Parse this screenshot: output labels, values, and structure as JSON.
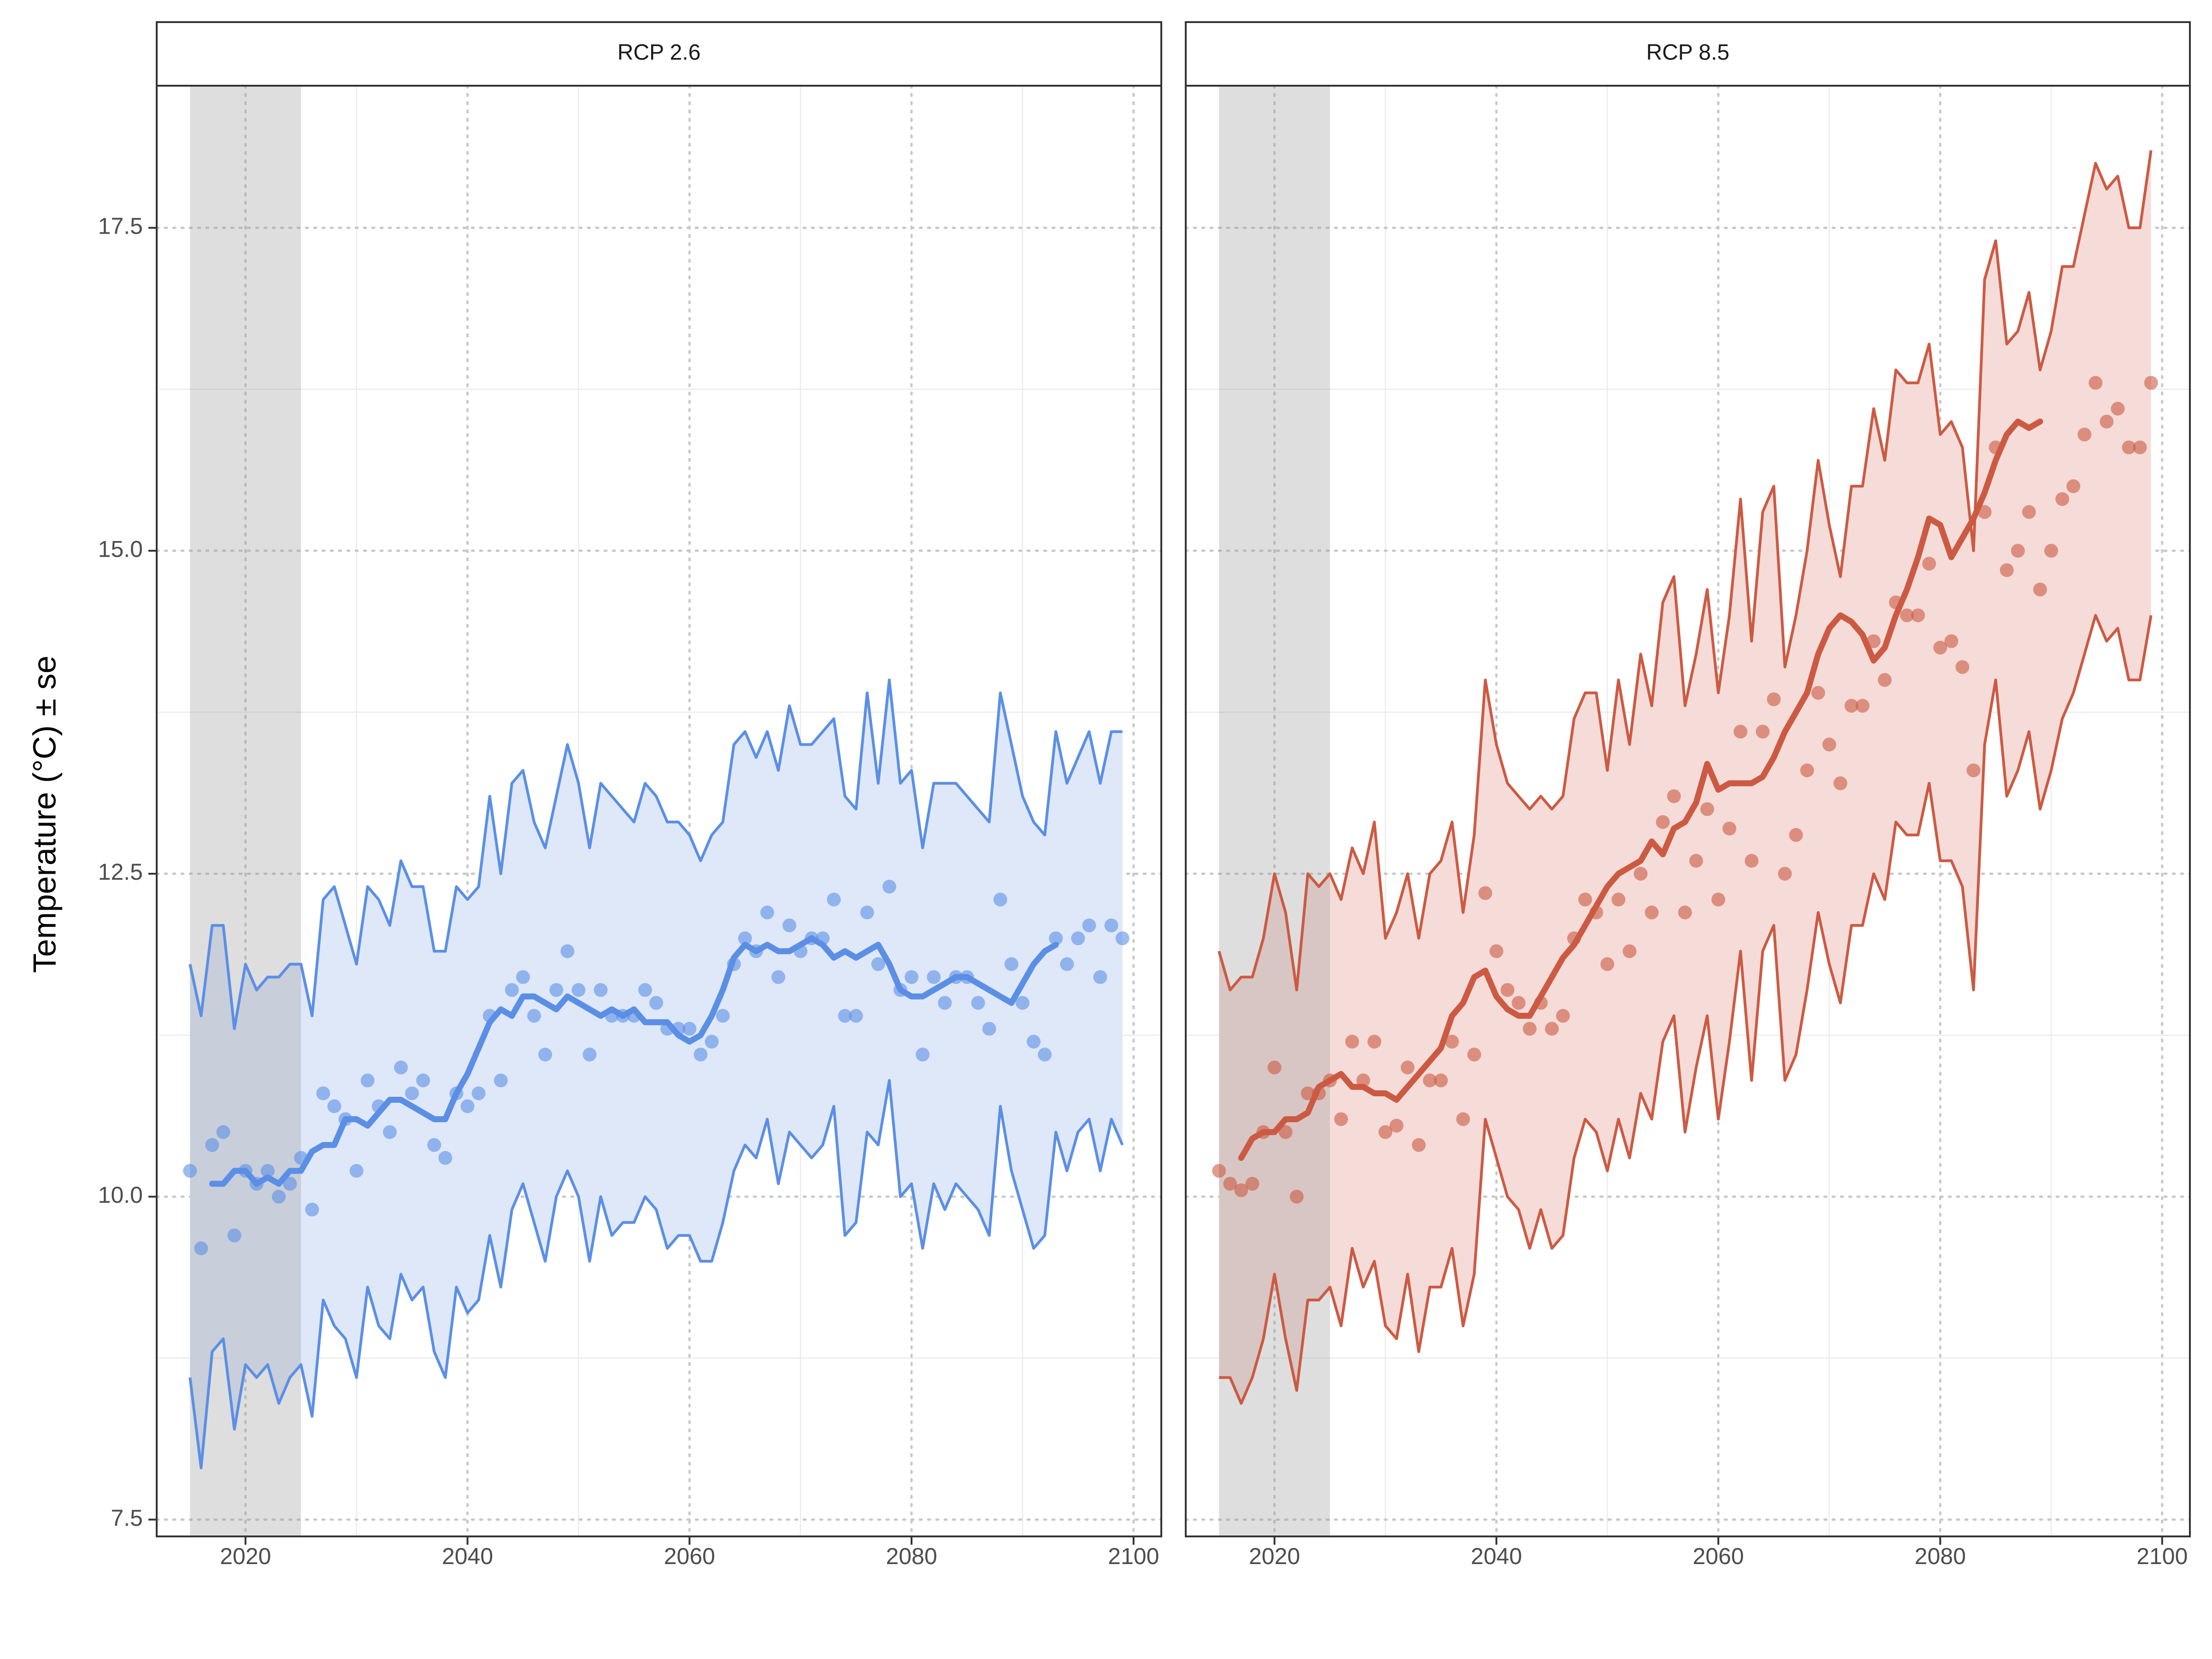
{
  "chart_data": {
    "type": "line",
    "ylabel": "Temperature (°C) ± se",
    "xlabel": "",
    "xlim": [
      2012,
      2102.5
    ],
    "ylim": [
      7.37,
      18.6
    ],
    "x_ticks": [
      2020,
      2040,
      2060,
      2080,
      2100
    ],
    "y_ticks": [
      7.5,
      10.0,
      12.5,
      15.0,
      17.5
    ],
    "y_tick_labels": [
      "7.5",
      "10.0",
      "12.5",
      "15.0",
      "17.5"
    ],
    "baseline_band": [
      2015,
      2025
    ],
    "grid": true,
    "panels": [
      {
        "title": "RCP 2.6",
        "color": "#5b8fe6",
        "fill": "#dfe8f9",
        "years_start": 2015,
        "mean": [
          10.2,
          9.6,
          10.4,
          10.5,
          9.7,
          10.2,
          10.1,
          10.2,
          10.0,
          10.1,
          10.3,
          9.9,
          10.8,
          10.7,
          10.6,
          10.2,
          10.9,
          10.7,
          10.5,
          11.0,
          10.8,
          10.9,
          10.4,
          10.3,
          10.8,
          10.7,
          10.8,
          11.4,
          10.9,
          11.6,
          11.7,
          11.4,
          11.1,
          11.6,
          11.9,
          11.6,
          11.1,
          11.6,
          11.4,
          11.4,
          11.4,
          11.6,
          11.5,
          11.3,
          11.3,
          11.3,
          11.1,
          11.2,
          11.4,
          11.8,
          12.0,
          11.9,
          12.2,
          11.7,
          12.1,
          11.9,
          12.0,
          12.0,
          12.3,
          11.4,
          11.4,
          12.2,
          11.8,
          12.4,
          11.6,
          11.7,
          11.1,
          11.7,
          11.5,
          11.7,
          11.7,
          11.5,
          11.3,
          12.3,
          11.8,
          11.5,
          11.2,
          11.1,
          12.0,
          11.8,
          12.0,
          12.1,
          11.7,
          12.1,
          12.0
        ],
        "upper": [
          11.8,
          11.4,
          12.1,
          12.1,
          11.3,
          11.8,
          11.6,
          11.7,
          11.7,
          11.8,
          11.8,
          11.4,
          12.3,
          12.4,
          12.1,
          11.8,
          12.4,
          12.3,
          12.1,
          12.6,
          12.4,
          12.4,
          11.9,
          11.9,
          12.4,
          12.3,
          12.4,
          13.1,
          12.5,
          13.2,
          13.3,
          12.9,
          12.7,
          13.1,
          13.5,
          13.2,
          12.7,
          13.2,
          13.1,
          13.0,
          12.9,
          13.2,
          13.1,
          12.9,
          12.9,
          12.8,
          12.6,
          12.8,
          12.9,
          13.5,
          13.6,
          13.4,
          13.6,
          13.3,
          13.8,
          13.5,
          13.5,
          13.6,
          13.7,
          13.1,
          13.0,
          13.9,
          13.2,
          14.0,
          13.2,
          13.3,
          12.7,
          13.2,
          13.2,
          13.2,
          13.1,
          13.0,
          12.9,
          13.9,
          13.5,
          13.1,
          12.9,
          12.8,
          13.6,
          13.2,
          13.4,
          13.6,
          13.2,
          13.6,
          13.6
        ],
        "lower": [
          8.6,
          7.9,
          8.8,
          8.9,
          8.2,
          8.7,
          8.6,
          8.7,
          8.4,
          8.6,
          8.7,
          8.3,
          9.2,
          9.0,
          8.9,
          8.6,
          9.3,
          9.0,
          8.9,
          9.4,
          9.2,
          9.3,
          8.8,
          8.6,
          9.3,
          9.1,
          9.2,
          9.7,
          9.3,
          9.9,
          10.1,
          9.8,
          9.5,
          10.0,
          10.2,
          10.0,
          9.5,
          10.0,
          9.7,
          9.8,
          9.8,
          10.0,
          9.9,
          9.6,
          9.7,
          9.7,
          9.5,
          9.5,
          9.8,
          10.2,
          10.4,
          10.3,
          10.6,
          10.1,
          10.5,
          10.4,
          10.3,
          10.4,
          10.7,
          9.7,
          9.8,
          10.5,
          10.4,
          10.9,
          10.0,
          10.1,
          9.6,
          10.1,
          9.9,
          10.1,
          10.0,
          9.9,
          9.7,
          10.7,
          10.2,
          9.9,
          9.6,
          9.7,
          10.5,
          10.2,
          10.5,
          10.6,
          10.2,
          10.6,
          10.4
        ],
        "trend": [
          10.1,
          10.1,
          10.2,
          10.2,
          10.1,
          10.15,
          10.1,
          10.2,
          10.2,
          10.35,
          10.4,
          10.4,
          10.6,
          10.6,
          10.55,
          10.65,
          10.75,
          10.75,
          10.7,
          10.65,
          10.6,
          10.6,
          10.8,
          10.95,
          11.15,
          11.35,
          11.45,
          11.4,
          11.55,
          11.55,
          11.5,
          11.45,
          11.55,
          11.5,
          11.45,
          11.4,
          11.45,
          11.4,
          11.45,
          11.35,
          11.35,
          11.35,
          11.25,
          11.2,
          11.25,
          11.4,
          11.6,
          11.85,
          11.95,
          11.9,
          11.95,
          11.9,
          11.9,
          11.95,
          12.0,
          11.95,
          11.85,
          11.9,
          11.85,
          11.9,
          11.95,
          11.8,
          11.6,
          11.55,
          11.55,
          11.6,
          11.65,
          11.7,
          11.7,
          11.65,
          11.6,
          11.55,
          11.5,
          11.65,
          11.8,
          11.9,
          11.95
        ]
      },
      {
        "title": "RCP 8.5",
        "color": "#cc5a43",
        "fill": "#f6dcd8",
        "years_start": 2015,
        "mean": [
          10.2,
          10.1,
          10.05,
          10.1,
          10.5,
          11.0,
          10.5,
          10.0,
          10.8,
          10.8,
          10.9,
          10.6,
          11.2,
          10.9,
          11.2,
          10.5,
          10.55,
          11.0,
          10.4,
          10.9,
          10.9,
          11.2,
          10.6,
          11.1,
          12.35,
          11.9,
          11.6,
          11.5,
          11.3,
          11.5,
          11.3,
          11.4,
          12.0,
          12.3,
          12.2,
          11.8,
          12.3,
          11.9,
          12.5,
          12.2,
          12.9,
          13.1,
          12.2,
          12.6,
          13.0,
          12.3,
          12.85,
          13.6,
          12.6,
          13.6,
          13.85,
          12.5,
          12.8,
          13.3,
          13.9,
          13.5,
          13.2,
          13.8,
          13.8,
          14.3,
          14.0,
          14.6,
          14.5,
          14.5,
          14.9,
          14.25,
          14.3,
          14.1,
          13.3,
          15.3,
          15.8,
          14.85,
          15.0,
          15.3,
          14.7,
          15.0,
          15.4,
          15.5,
          15.9,
          16.3,
          16.0,
          16.1,
          15.8,
          15.8,
          16.3
        ],
        "upper": [
          11.9,
          11.6,
          11.7,
          11.7,
          12.0,
          12.5,
          12.2,
          11.6,
          12.5,
          12.4,
          12.5,
          12.3,
          12.7,
          12.5,
          12.9,
          12.0,
          12.2,
          12.5,
          12.0,
          12.5,
          12.6,
          12.9,
          12.2,
          12.8,
          14.0,
          13.5,
          13.2,
          13.1,
          13.0,
          13.1,
          13.0,
          13.1,
          13.7,
          13.9,
          13.9,
          13.3,
          14.0,
          13.5,
          14.2,
          13.8,
          14.6,
          14.8,
          13.8,
          14.2,
          14.7,
          13.9,
          14.5,
          15.4,
          14.3,
          15.3,
          15.5,
          14.1,
          14.5,
          15.0,
          15.7,
          15.2,
          14.8,
          15.5,
          15.5,
          16.1,
          15.7,
          16.4,
          16.3,
          16.3,
          16.6,
          15.9,
          16.0,
          15.8,
          15.0,
          17.1,
          17.4,
          16.6,
          16.7,
          17.0,
          16.4,
          16.7,
          17.2,
          17.2,
          17.6,
          18.0,
          17.8,
          17.9,
          17.5,
          17.5,
          18.1
        ],
        "lower": [
          8.6,
          8.6,
          8.4,
          8.6,
          8.9,
          9.4,
          8.9,
          8.5,
          9.2,
          9.2,
          9.3,
          9.0,
          9.6,
          9.3,
          9.5,
          9.0,
          8.9,
          9.4,
          8.8,
          9.3,
          9.3,
          9.6,
          9.0,
          9.4,
          10.6,
          10.3,
          10.0,
          9.9,
          9.6,
          9.9,
          9.6,
          9.7,
          10.3,
          10.6,
          10.5,
          10.2,
          10.6,
          10.3,
          10.8,
          10.6,
          11.2,
          11.4,
          10.5,
          11.0,
          11.4,
          10.6,
          11.2,
          11.9,
          10.9,
          11.9,
          12.1,
          10.9,
          11.1,
          11.6,
          12.2,
          11.8,
          11.5,
          12.1,
          12.1,
          12.5,
          12.3,
          12.9,
          12.8,
          12.8,
          13.2,
          12.6,
          12.6,
          12.4,
          11.6,
          13.5,
          14.0,
          13.1,
          13.3,
          13.6,
          13.0,
          13.3,
          13.7,
          13.9,
          14.2,
          14.5,
          14.3,
          14.4,
          14.0,
          14.0,
          14.5
        ],
        "trend": [
          10.3,
          10.45,
          10.5,
          10.5,
          10.6,
          10.6,
          10.65,
          10.85,
          10.9,
          10.95,
          10.85,
          10.85,
          10.8,
          10.8,
          10.75,
          10.85,
          10.95,
          11.05,
          11.15,
          11.4,
          11.5,
          11.7,
          11.75,
          11.55,
          11.45,
          11.4,
          11.4,
          11.55,
          11.7,
          11.85,
          11.95,
          12.1,
          12.25,
          12.4,
          12.5,
          12.55,
          12.6,
          12.75,
          12.65,
          12.85,
          12.9,
          13.05,
          13.35,
          13.15,
          13.2,
          13.2,
          13.2,
          13.25,
          13.4,
          13.6,
          13.75,
          13.9,
          14.2,
          14.4,
          14.5,
          14.45,
          14.35,
          14.15,
          14.25,
          14.5,
          14.7,
          14.95,
          15.25,
          15.2,
          14.95,
          15.1,
          15.25,
          15.45,
          15.7,
          15.9,
          16.0,
          15.95,
          16.0
        ]
      }
    ]
  }
}
